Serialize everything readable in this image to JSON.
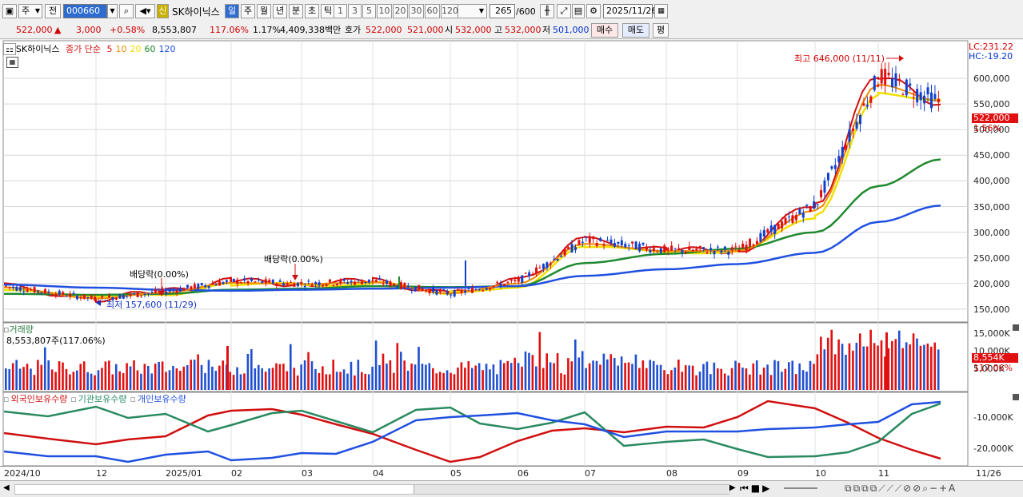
{
  "toolbar": {
    "period_select": "주",
    "prev_label": "전",
    "stock_code": "000660",
    "stock_name": "SK하이닉스",
    "credit_badge": "신",
    "period_buttons": [
      "일",
      "주",
      "월",
      "년",
      "분",
      "초",
      "틱"
    ],
    "interval_buttons": [
      "1",
      "3",
      "5",
      "10",
      "20",
      "30",
      "60",
      "120"
    ],
    "count": "265",
    "count_max": "/600",
    "date": "2025/11/26"
  },
  "quote": {
    "price": "522,000",
    "arrow": "▲",
    "change": "3,000",
    "change_pct": "+0.58%",
    "volume": "8,553,807",
    "volume_ratio": "117.06%",
    "turnover": "1.17%",
    "amount": "4,409,338백만",
    "hoga_label": "호가",
    "ask": "522,000",
    "bid": "521,000",
    "open_label": "시",
    "open": "532,000",
    "high_label": "고",
    "high": "532,000",
    "low_label": "저",
    "low": "501,000",
    "buy_btn": "매수",
    "sell_btn": "매도",
    "eval_btn": "평"
  },
  "price_chart": {
    "legend_name": "SK하이닉스",
    "legend_ma": "종가 단순",
    "ma_periods": [
      "5",
      "10",
      "20",
      "60",
      "120"
    ],
    "ma_colors": [
      "#d01010",
      "#f08a00",
      "#f0e000",
      "#208a30",
      "#2050e0"
    ],
    "lc": "LC:231.22",
    "hc": "HC:-19.20",
    "y_labels": [
      "600,000",
      "550,000",
      "500,000",
      "450,000",
      "400,000",
      "350,000",
      "300,000",
      "250,000",
      "200,000",
      "150,000"
    ],
    "last_price": "522,000",
    "last_pct": "1.56%",
    "high_note": "최고 646,000 (11/11)",
    "low_note": "최저 157,600 (11/29)",
    "dividend_1": "배당락(0.00%)",
    "dividend_2": "배당락(0.00%)"
  },
  "volume_chart": {
    "title": "거래량",
    "value": "8,553,807주(117.06%)",
    "y_labels": [
      "15,000K",
      "10,000K",
      "5,000K"
    ],
    "last": "8,554K",
    "last_pct": "117.06%"
  },
  "holding_chart": {
    "legend": [
      "외국인보유수량",
      "기관보유수량",
      "개인보유수량"
    ],
    "colors": [
      "#d01010",
      "#208a60",
      "#2050e0"
    ],
    "y_labels": [
      "-10,000K",
      "-20,000K"
    ]
  },
  "x_axis": {
    "labels": [
      "2024/10",
      "12",
      "2025/01",
      "02",
      "03",
      "04",
      "05",
      "06",
      "07",
      "08",
      "09",
      "10",
      "11"
    ],
    "last": "11/26"
  },
  "chart_data": {
    "type": "line",
    "title": "",
    "x": [
      "2024/10",
      "12",
      "2025/01",
      "02",
      "03",
      "04",
      "05",
      "06",
      "07",
      "08",
      "09",
      "10",
      "11",
      "11/26"
    ],
    "series": [
      {
        "name": "종가 단순 5",
        "values": [
          195000,
          170000,
          185000,
          205000,
          200000,
          205000,
          180000,
          205000,
          285000,
          265000,
          265000,
          355000,
          605000,
          552000
        ]
      },
      {
        "name": "종가 단순 20",
        "values": [
          190000,
          172000,
          180000,
          198000,
          198000,
          200000,
          182000,
          195000,
          270000,
          262000,
          262000,
          330000,
          570000,
          560000
        ]
      },
      {
        "name": "종가 단순 60",
        "values": [
          180000,
          178000,
          180000,
          188000,
          190000,
          195000,
          193000,
          195000,
          240000,
          258000,
          268000,
          300000,
          390000,
          442000
        ]
      },
      {
        "name": "종가 단순 120",
        "values": [
          198000,
          192000,
          188000,
          186000,
          188000,
          190000,
          192000,
          195000,
          215000,
          228000,
          238000,
          260000,
          320000,
          352000
        ]
      }
    ],
    "ylim": [
      150000,
      660000
    ],
    "annotations": [
      "최고 646,000 (11/11)",
      "최저 157,600 (11/29)"
    ],
    "grid": true
  }
}
